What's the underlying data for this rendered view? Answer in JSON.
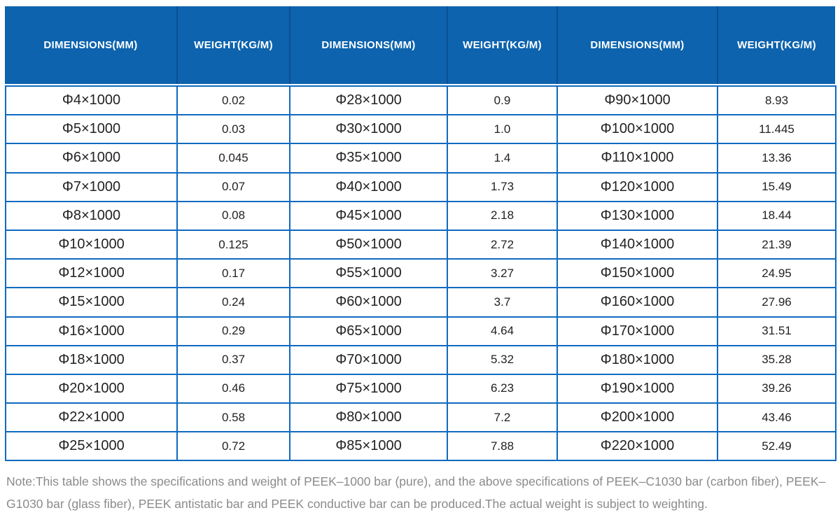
{
  "chart_data": {
    "type": "table",
    "columns": [
      "DIMENSIONS(MM)",
      "WEIGHT(KG/M)",
      "DIMENSIONS(MM)",
      "WEIGHT(KG/M)",
      "DIMENSIONS(MM)",
      "WEIGHT(KG/M)"
    ],
    "rows": [
      [
        "Φ4×1000",
        "0.02",
        "Φ28×1000",
        "0.9",
        "Φ90×1000",
        "8.93"
      ],
      [
        "Φ5×1000",
        "0.03",
        "Φ30×1000",
        "1.0",
        "Φ100×1000",
        "11.445"
      ],
      [
        "Φ6×1000",
        "0.045",
        "Φ35×1000",
        "1.4",
        "Φ110×1000",
        "13.36"
      ],
      [
        "Φ7×1000",
        "0.07",
        "Φ40×1000",
        "1.73",
        "Φ120×1000",
        "15.49"
      ],
      [
        "Φ8×1000",
        "0.08",
        "Φ45×1000",
        "2.18",
        "Φ130×1000",
        "18.44"
      ],
      [
        "Φ10×1000",
        "0.125",
        "Φ50×1000",
        "2.72",
        "Φ140×1000",
        "21.39"
      ],
      [
        "Φ12×1000",
        "0.17",
        "Φ55×1000",
        "3.27",
        "Φ150×1000",
        "24.95"
      ],
      [
        "Φ15×1000",
        "0.24",
        "Φ60×1000",
        "3.7",
        "Φ160×1000",
        "27.96"
      ],
      [
        "Φ16×1000",
        "0.29",
        "Φ65×1000",
        "4.64",
        "Φ170×1000",
        "31.51"
      ],
      [
        "Φ18×1000",
        "0.37",
        "Φ70×1000",
        "5.32",
        "Φ180×1000",
        "35.28"
      ],
      [
        "Φ20×1000",
        "0.46",
        "Φ75×1000",
        "6.23",
        "Φ190×1000",
        "39.26"
      ],
      [
        "Φ22×1000",
        "0.58",
        "Φ80×1000",
        "7.2",
        "Φ200×1000",
        "43.46"
      ],
      [
        "Φ25×1000",
        "0.72",
        "Φ85×1000",
        "7.88",
        "Φ220×1000",
        "52.49"
      ]
    ],
    "layout": {
      "header_position": "top",
      "grid": true,
      "column_group_pairs": 3
    }
  },
  "note": {
    "text": "Note:This table shows the specifications and weight of PEEK–1000 bar (pure), and the above specifications of PEEK–C1030 bar (carbon fiber), PEEK–G1030 bar (glass fiber), PEEK antistatic bar and PEEK conductive bar can be produced.The actual weight is subject to weighting."
  },
  "colors": {
    "header_bg": "#0d63ad",
    "header_divider": "#0a4f94",
    "grid_border": "#0f6abf",
    "header_text": "#ffffff",
    "body_text": "#222222",
    "note_text": "#8b8b8b"
  }
}
